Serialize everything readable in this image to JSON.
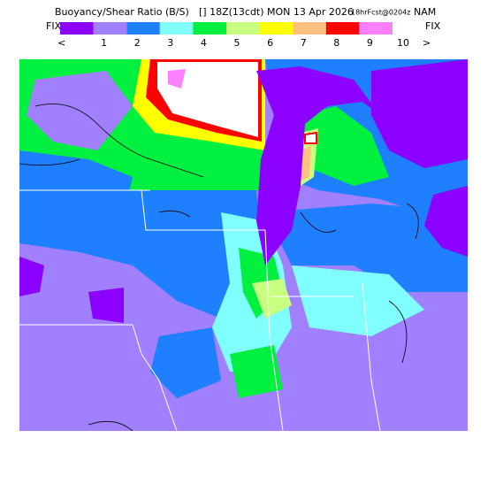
{
  "header": {
    "title": "Buoyancy/Shear Ratio (B/S)",
    "time": "[] 18Z(13cdt) MON 13 Apr 2026",
    "forecast": "18hrFcst@0204z",
    "model": "NAM"
  },
  "legend": {
    "left_label": "FIX",
    "right_label": "FIX",
    "prev": "<",
    "next": ">",
    "colors": [
      "#8c00ff",
      "#a080ff",
      "#1e80ff",
      "#80ffff",
      "#00f040",
      "#c8ff80",
      "#ffff00",
      "#ffc080",
      "#ff0000",
      "#ff80ff"
    ],
    "labels": [
      1,
      2,
      3,
      4,
      5,
      6,
      7,
      8,
      9,
      10
    ]
  }
}
